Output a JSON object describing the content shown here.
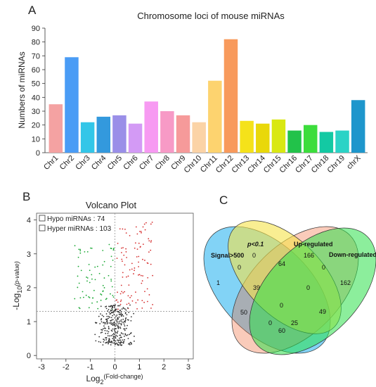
{
  "chart_data": [
    {
      "panel": "A",
      "type": "bar",
      "title": "Chromosome loci of mouse miRNAs",
      "ylabel": "Numbers of miRNAs",
      "xlabel": "",
      "ylim": [
        0,
        90
      ],
      "yticks": [
        0,
        10,
        20,
        30,
        40,
        50,
        60,
        70,
        80,
        90
      ],
      "categories": [
        "Chr1",
        "Chr2",
        "Chr3",
        "Chr4",
        "Chr5",
        "Chr6",
        "Chr7",
        "Chr8",
        "Chr9",
        "Chr10",
        "Chr11",
        "Chr12",
        "Chr13",
        "Chr14",
        "Chr15",
        "Chr16",
        "Chr17",
        "Chr18",
        "Chr19",
        "chrX"
      ],
      "values": [
        35,
        69,
        22,
        26,
        27,
        21,
        37,
        30,
        27,
        22,
        52,
        82,
        23,
        21,
        24,
        16,
        20,
        15,
        16,
        38
      ],
      "colors": [
        "#f4a2a2",
        "#4a9cf5",
        "#33c6e8",
        "#3399dd",
        "#9a8fe8",
        "#d39af5",
        "#f79af2",
        "#f79ac6",
        "#f69a9a",
        "#fbd3a6",
        "#fdd36f",
        "#f89a5c",
        "#f5e21a",
        "#e9d80a",
        "#d9e812",
        "#22c24a",
        "#3cdd3c",
        "#13c9a3",
        "#2bd3c6",
        "#1e96cc"
      ],
      "grid": false
    },
    {
      "panel": "B",
      "type": "scatter",
      "title": "Volcano  Plot",
      "xlabel_base": "Log",
      "xlabel_sub": "2",
      "xlabel_sup": "(Fold-change)",
      "ylabel_base": "-Log",
      "ylabel_sub": "10",
      "ylabel_sup": "(p-value)",
      "xlim": [
        -3.2,
        3.2
      ],
      "ylim": [
        -0.1,
        4.2
      ],
      "xticks": [
        -3,
        -2,
        -1,
        0,
        1,
        2,
        3
      ],
      "yticks": [
        0,
        1,
        2,
        3,
        4
      ],
      "threshold_x": 0,
      "threshold_y": 1.3,
      "legend": [
        {
          "label": "Hypo  miRNAs : 74"
        },
        {
          "label": "Hyper miRNAs : 103"
        }
      ],
      "series": [
        {
          "color": "#1aa834",
          "count": 74
        },
        {
          "color": "#d63030",
          "count": 103
        },
        {
          "color": "#333333",
          "count": 300
        }
      ]
    },
    {
      "panel": "C",
      "type": "venn",
      "sets": [
        "Signal>500",
        "p<0.1",
        "Up-regulated",
        "Down-regulated"
      ],
      "regions": [
        {
          "key": "signal_only",
          "value": "1"
        },
        {
          "key": "p_only",
          "value": "0"
        },
        {
          "key": "up_only",
          "value": "166"
        },
        {
          "key": "down_only",
          "value": "162"
        },
        {
          "key": "p_up",
          "value": "64"
        },
        {
          "key": "signal_p",
          "value": "0"
        },
        {
          "key": "up_down",
          "value": "0"
        },
        {
          "key": "signal_p_up",
          "value": "39"
        },
        {
          "key": "p_up_down",
          "value": "0"
        },
        {
          "key": "all",
          "value": "0"
        },
        {
          "key": "signal_up_down_a",
          "value": "49"
        },
        {
          "key": "signal_down_a",
          "value": "50"
        },
        {
          "key": "signal_down_b",
          "value": "0"
        },
        {
          "key": "signal_down_c",
          "value": "25"
        },
        {
          "key": "signal_down_d",
          "value": "60"
        }
      ]
    }
  ],
  "panels": {
    "a_letter": "A",
    "b_letter": "B",
    "c_letter": "C"
  }
}
